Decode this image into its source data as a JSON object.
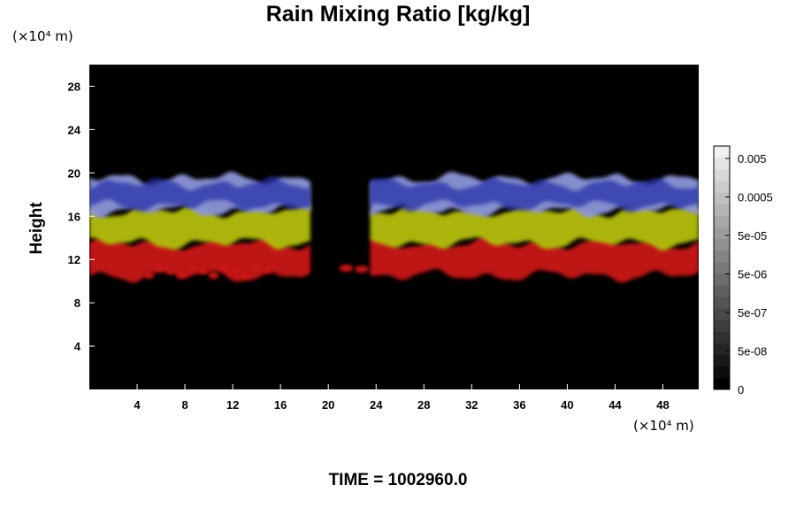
{
  "chart_data": {
    "type": "heatmap",
    "title": "Rain Mixing Ratio [kg/kg]",
    "ylabel": "Height",
    "x_unit": "(×10⁴ m)",
    "y_unit": "(×10⁴ m)",
    "xlim": [
      0,
      51
    ],
    "ylim": [
      0,
      30
    ],
    "x_ticks": [
      4,
      8,
      12,
      16,
      20,
      24,
      28,
      32,
      36,
      40,
      44,
      48
    ],
    "y_ticks": [
      4,
      8,
      12,
      16,
      20,
      24,
      28
    ],
    "colorbar": {
      "labels": [
        "0.005",
        "0.0005",
        "5e-05",
        "5e-06",
        "5e-07",
        "5e-08",
        "0"
      ],
      "levels": 21,
      "colors_bottom_to_top": [
        "#000000",
        "#f0f0f0"
      ]
    },
    "layers": [
      {
        "color": "#c81414",
        "y_range": [
          10.5,
          13.5
        ]
      },
      {
        "color": "#b4be0a",
        "y_range": [
          13.5,
          16.5
        ]
      },
      {
        "color": "#8c96d8",
        "y_range": [
          16.5,
          19.5
        ]
      },
      {
        "color": "#2832aa",
        "y_range": [
          17,
          19
        ]
      }
    ],
    "clear_gap_x": [
      18.5,
      23.5
    ],
    "annotation": "TIME = 1002960.0"
  }
}
